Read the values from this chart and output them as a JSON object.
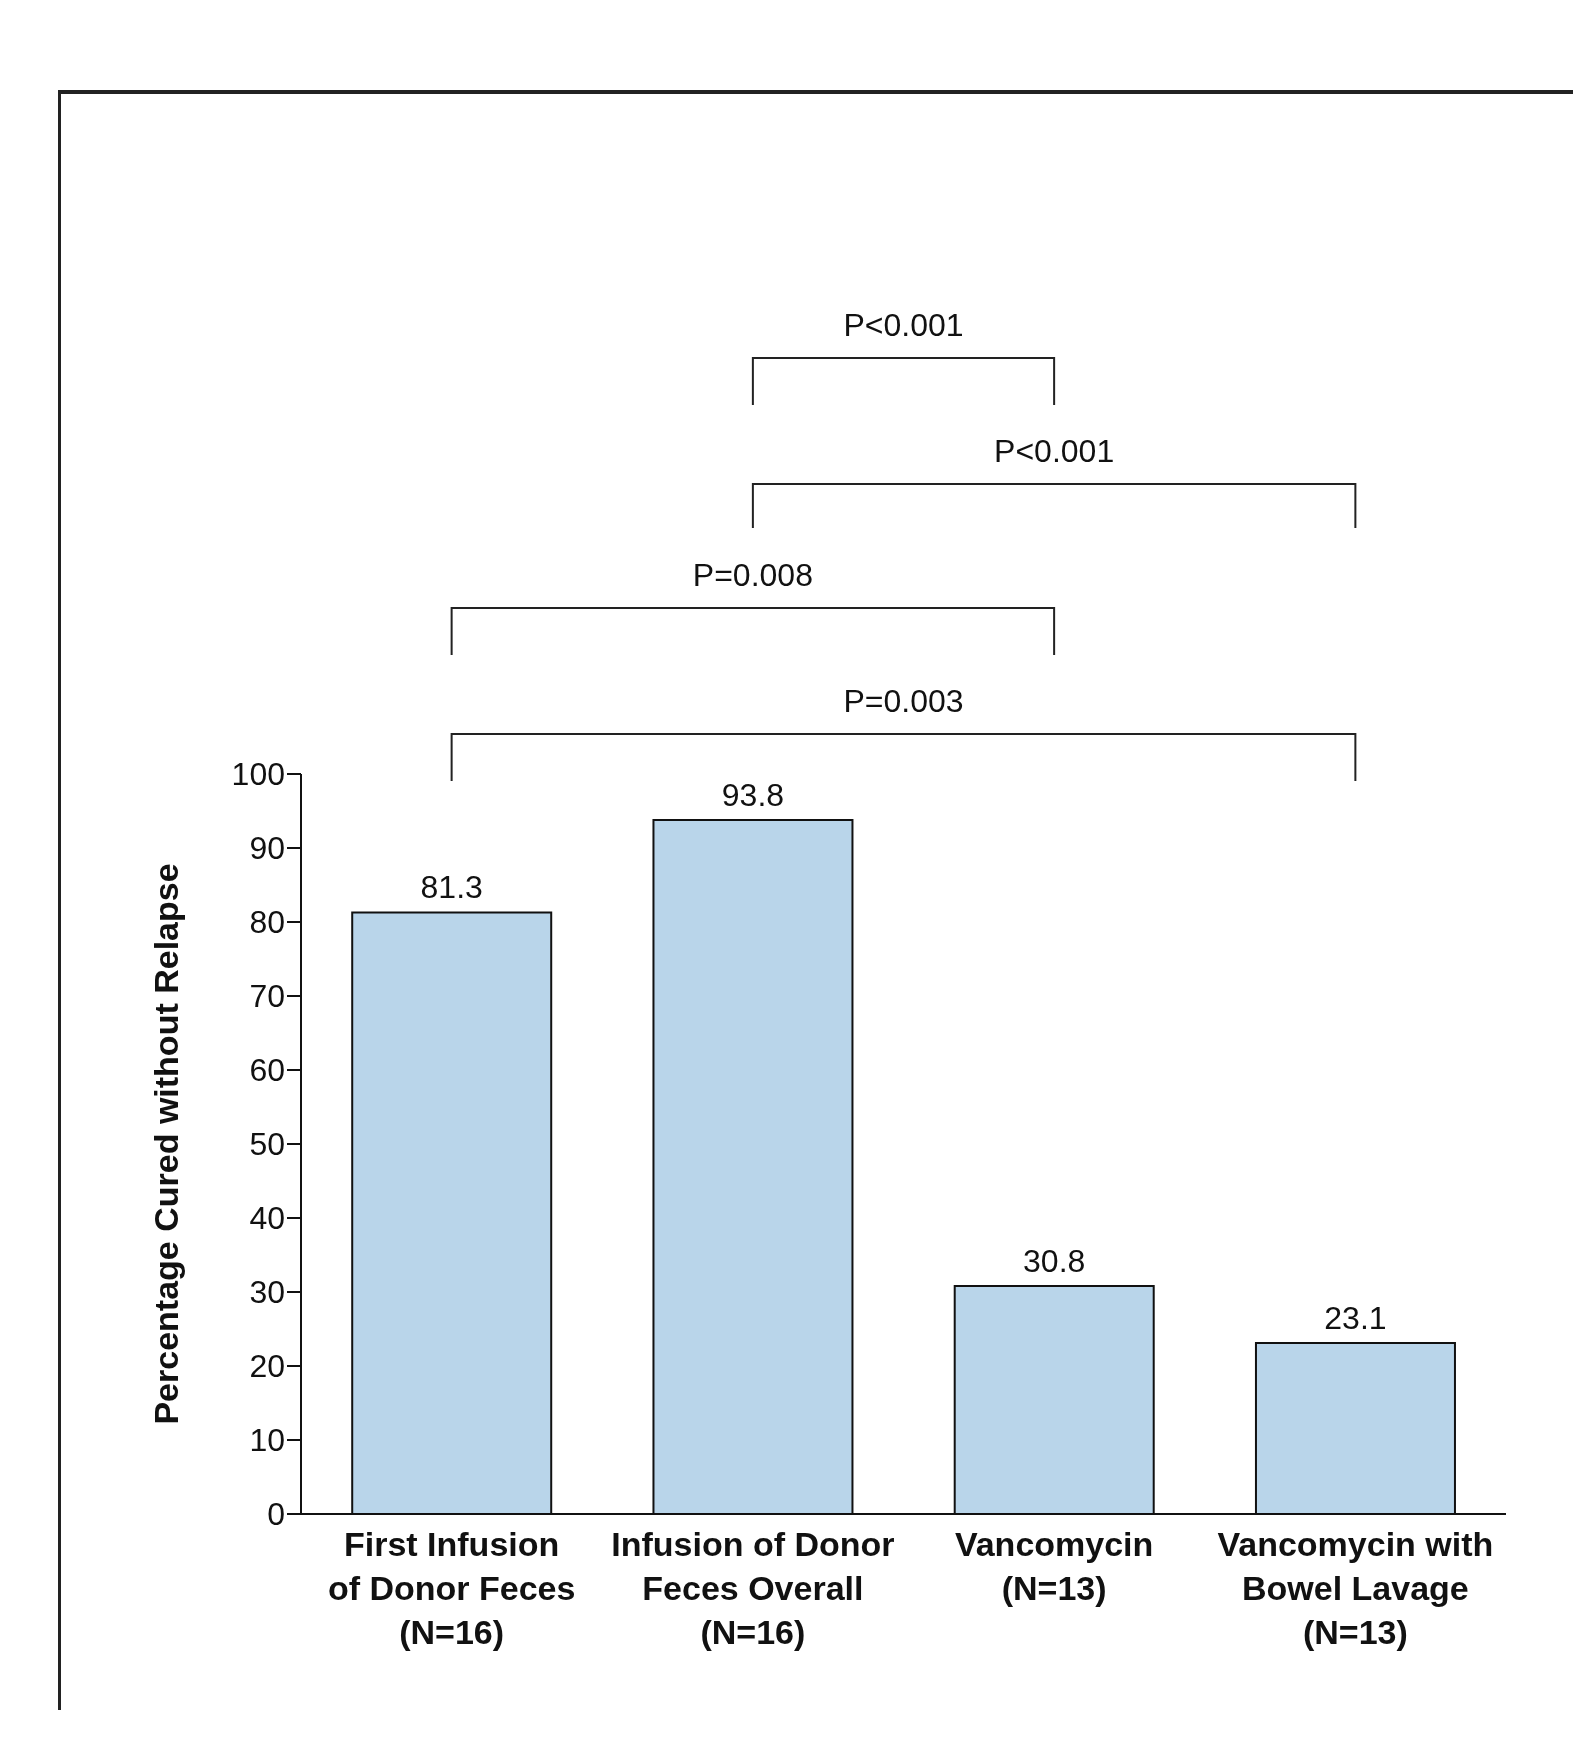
{
  "chart_data": {
    "type": "bar",
    "ylabel": "Percentage Cured without Relapse",
    "categories": [
      "First Infusion\nof Donor Feces\n(N=16)",
      "Infusion of Donor\nFeces Overall\n(N=16)",
      "Vancomycin\n(N=13)",
      "Vancomycin with\nBowel Lavage\n(N=13)"
    ],
    "values": [
      81.3,
      93.8,
      30.8,
      23.1
    ],
    "color": "#b9d5ea",
    "data_labels": true,
    "ylim": [
      0,
      100
    ],
    "yticks": [
      0,
      10,
      20,
      30,
      40,
      50,
      60,
      70,
      80,
      90,
      100
    ],
    "grid": false,
    "annotations": [
      "P<0.001",
      "P<0.001",
      "P=0.008",
      "P=0.003"
    ]
  }
}
